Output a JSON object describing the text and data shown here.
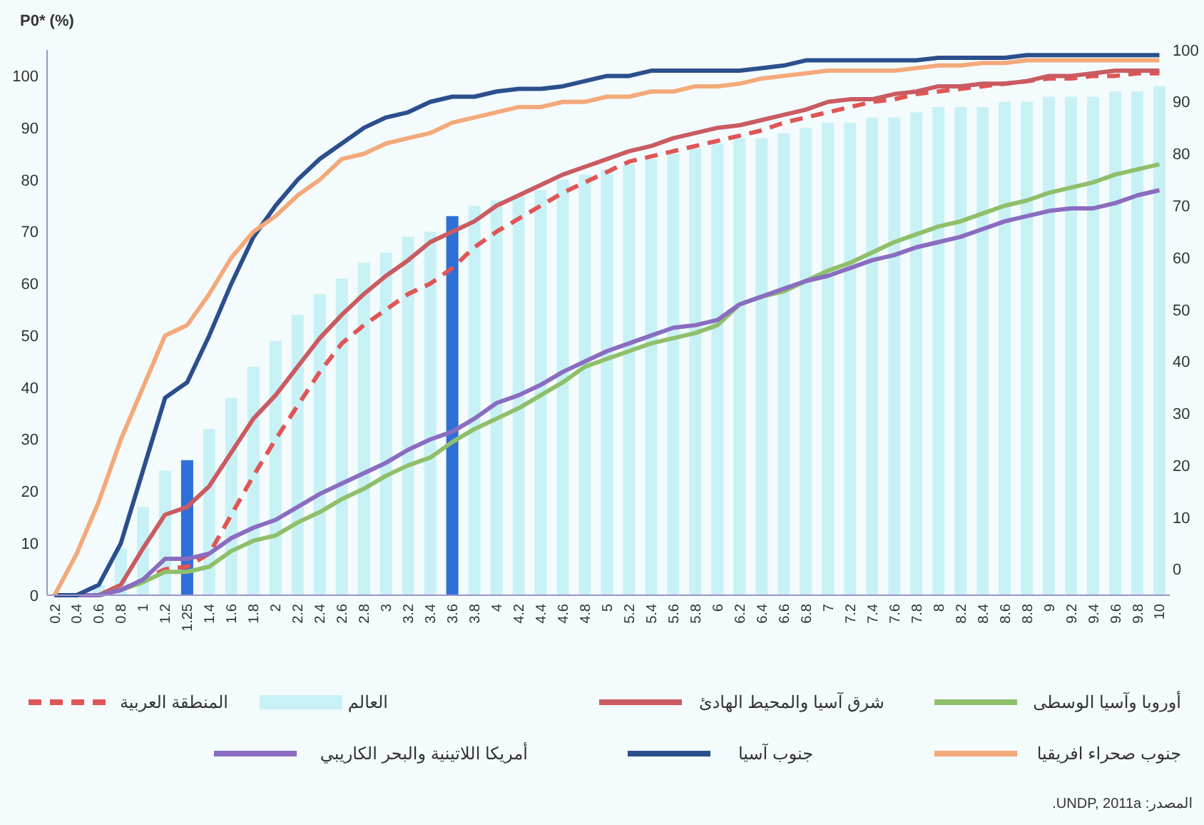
{
  "chart_data": {
    "type": "bar",
    "ylabel": "P0* (%)",
    "categories": [
      "0.2",
      "0.4",
      "0.6",
      "0.8",
      "1",
      "1.2",
      "1.25",
      "1.4",
      "1.6",
      "1.8",
      "2",
      "2.2",
      "2.4",
      "2.6",
      "2.8",
      "3",
      "3.2",
      "3.4",
      "3.6",
      "3.8",
      "4",
      "4.2",
      "4.4",
      "4.6",
      "4.8",
      "5",
      "5.2",
      "5.4",
      "5.6",
      "5.8",
      "6",
      "6.2",
      "6.4",
      "6.6",
      "6.8",
      "7",
      "7.2",
      "7.4",
      "7.6",
      "7.8",
      "8",
      "8.2",
      "8.4",
      "8.6",
      "8.8",
      "9",
      "9.2",
      "9.4",
      "9.6",
      "9.8",
      "10"
    ],
    "series": [
      {
        "name": "العالم",
        "color": "#c8f1f6",
        "colors": [
          "#c8f1f6",
          "#c8f1f6",
          "#c8f1f6",
          "#c8f1f6",
          "#c8f1f6",
          "#c8f1f6",
          "#2f6fd8",
          "#c8f1f6",
          "#c8f1f6",
          "#c8f1f6",
          "#c8f1f6",
          "#c8f1f6",
          "#c8f1f6",
          "#c8f1f6",
          "#c8f1f6",
          "#c8f1f6",
          "#c8f1f6",
          "#c8f1f6",
          "#2f6fd8",
          "#c8f1f6",
          "#c8f1f6",
          "#c8f1f6",
          "#c8f1f6",
          "#c8f1f6",
          "#c8f1f6",
          "#c8f1f6",
          "#c8f1f6",
          "#c8f1f6",
          "#c8f1f6",
          "#c8f1f6",
          "#c8f1f6",
          "#c8f1f6",
          "#c8f1f6",
          "#c8f1f6",
          "#c8f1f6",
          "#c8f1f6",
          "#c8f1f6",
          "#c8f1f6",
          "#c8f1f6",
          "#c8f1f6",
          "#c8f1f6",
          "#c8f1f6",
          "#c8f1f6",
          "#c8f1f6",
          "#c8f1f6",
          "#c8f1f6",
          "#c8f1f6",
          "#c8f1f6",
          "#c8f1f6",
          "#c8f1f6",
          "#c8f1f6"
        ],
        "values": [
          0,
          0,
          2,
          9,
          17,
          24,
          26,
          32,
          38,
          44,
          49,
          54,
          58,
          61,
          64,
          66,
          69,
          70,
          73,
          75,
          76,
          77,
          78,
          80,
          81,
          82,
          83,
          84,
          85,
          86,
          87,
          88,
          88,
          89,
          90,
          91,
          91,
          92,
          92,
          93,
          94,
          94,
          94,
          95,
          95,
          96,
          96,
          96,
          97,
          97,
          98
        ]
      },
      {
        "name": "المنطقة العربية",
        "type": "line",
        "line_style": "dashed",
        "color": "#e05555",
        "values": [
          0,
          0,
          0,
          1,
          3,
          5,
          5.5,
          8,
          15.5,
          23,
          30,
          36.5,
          43,
          48.5,
          52,
          55,
          58,
          60,
          63,
          67,
          70,
          72.5,
          75,
          77.5,
          79.5,
          81.5,
          83.5,
          84.5,
          85.5,
          86.5,
          87.5,
          88.5,
          89.5,
          91,
          92,
          93,
          94,
          95,
          95.5,
          96.5,
          97,
          97.5,
          98,
          98.5,
          99,
          99.5,
          99.5,
          100,
          100,
          100.5,
          100.5
        ]
      },
      {
        "name": "شرق آسيا والمحيط الهادئ",
        "type": "line",
        "line_style": "solid",
        "color": "#c95b61",
        "values": [
          0,
          0,
          0,
          2,
          9,
          15.5,
          17,
          21,
          27.5,
          34,
          38.5,
          44,
          49.5,
          54,
          58,
          61.5,
          64.5,
          68,
          70,
          72,
          75,
          77,
          79,
          81,
          82.5,
          84,
          85.5,
          86.5,
          88,
          89,
          90,
          90.5,
          91.5,
          92.5,
          93.5,
          95,
          95.5,
          95.5,
          96.5,
          97,
          98,
          98,
          98.5,
          98.5,
          99,
          100,
          100,
          100.5,
          101,
          101,
          101
        ]
      },
      {
        "name": "أوروبا وآسيا الوسطى",
        "type": "line",
        "line_style": "solid",
        "color": "#8fbf6a",
        "values": [
          null,
          null,
          0,
          1,
          2.5,
          4.5,
          4.5,
          5.5,
          8.5,
          10.5,
          11.5,
          14,
          16,
          18.5,
          20.5,
          23,
          25,
          26.5,
          29.5,
          32,
          34,
          36,
          38.5,
          41,
          44,
          45.5,
          47,
          48.5,
          49.5,
          50.5,
          52,
          56,
          57.5,
          58.5,
          60.5,
          62.5,
          64,
          66,
          68,
          69.5,
          71,
          72,
          73.5,
          75,
          76,
          77.5,
          78.5,
          79.5,
          81,
          82,
          83
        ]
      },
      {
        "name": "أمريكا اللاتينية والبحر الكاريبي",
        "type": "line",
        "line_style": "solid",
        "color": "#8a6cc0",
        "values": [
          0,
          0,
          0,
          1,
          3,
          7,
          7,
          8,
          11,
          13,
          14.5,
          17,
          19.5,
          21.5,
          23.5,
          25.5,
          28,
          30,
          31.5,
          34,
          37,
          38.5,
          40.5,
          43,
          45,
          47,
          48.5,
          50,
          51.5,
          52,
          53,
          56,
          57.5,
          59,
          60.5,
          61.5,
          63,
          64.5,
          65.5,
          67,
          68,
          69,
          70.5,
          72,
          73,
          74,
          74.5,
          74.5,
          75.5,
          77,
          78
        ]
      },
      {
        "name": "جنوب آسيا",
        "type": "line",
        "line_style": "solid",
        "color": "#2b4f8c",
        "values": [
          0,
          0,
          2,
          10,
          24,
          38,
          41,
          50,
          60,
          69,
          75,
          80,
          84,
          87,
          90,
          92,
          93,
          95,
          96,
          96,
          97,
          97.5,
          97.5,
          98,
          99,
          100,
          100,
          101,
          101,
          101,
          101,
          101,
          101.5,
          102,
          103,
          103,
          103,
          103,
          103,
          103,
          103.5,
          103.5,
          103.5,
          103.5,
          104,
          104,
          104,
          104,
          104,
          104,
          104
        ]
      },
      {
        "name": "جنوب صحراء افريقيا",
        "type": "line",
        "line_style": "solid",
        "color": "#f4a97a",
        "values": [
          0,
          8,
          18,
          30,
          40,
          50,
          52,
          58,
          65,
          70,
          73,
          77,
          80,
          84,
          85,
          87,
          88,
          89,
          91,
          92,
          93,
          94,
          94,
          95,
          95,
          96,
          96,
          97,
          97,
          98,
          98,
          98.5,
          99.5,
          100,
          100.5,
          101,
          101,
          101,
          101,
          101.5,
          102,
          102,
          102.5,
          102.5,
          103,
          103,
          103,
          103,
          103,
          103,
          103
        ]
      }
    ],
    "ylim": [
      0,
      105
    ],
    "yticks": [
      0,
      10,
      20,
      30,
      40,
      50,
      60,
      70,
      80,
      90,
      100
    ],
    "y2lim": [
      -5,
      100
    ],
    "y2ticks": [
      0,
      10,
      20,
      30,
      40,
      50,
      60,
      70,
      80,
      90,
      100
    ],
    "legend": "bottom",
    "annotations": [
      "المصدر: UNDP, 2011a."
    ]
  }
}
